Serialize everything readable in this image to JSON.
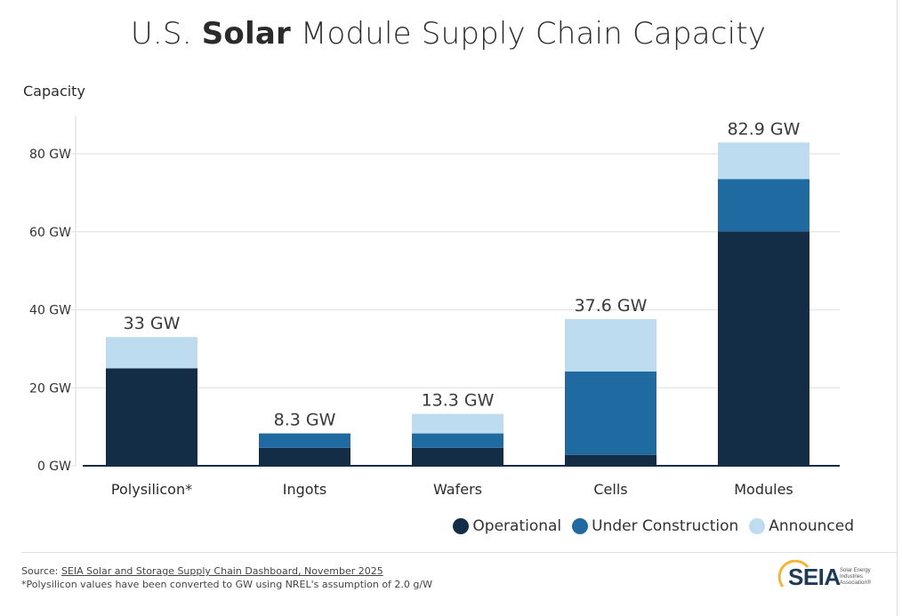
{
  "title": {
    "prefix": "U.S.",
    "bold": "Solar",
    "suffix": "Module Supply Chain Capacity"
  },
  "chart_data": {
    "type": "bar",
    "stacked": true,
    "title": "U.S. Solar Module Supply Chain Capacity",
    "xlabel": "",
    "ylabel": "Capacity",
    "ylim": [
      0,
      90
    ],
    "yticks": [
      0,
      20,
      40,
      60,
      80
    ],
    "ytick_labels": [
      "0 GW",
      "20 GW",
      "40 GW",
      "60 GW",
      "80 GW"
    ],
    "grid": true,
    "legend_position": "bottom-right",
    "categories": [
      "Polysilicon*",
      "Ingots",
      "Wafers",
      "Cells",
      "Modules"
    ],
    "series": [
      {
        "name": "Operational",
        "color": "#132d46",
        "values": [
          25,
          4.6,
          4.6,
          2.8,
          60.1
        ]
      },
      {
        "name": "Under Construction",
        "color": "#1f6aa0",
        "values": [
          0,
          3.7,
          3.7,
          21.4,
          13.4
        ]
      },
      {
        "name": "Announced",
        "color": "#bddcf0",
        "values": [
          8,
          0,
          5,
          13.4,
          9.4
        ]
      }
    ],
    "totals": [
      33,
      8.3,
      13.3,
      37.6,
      82.9
    ],
    "total_labels": [
      "33 GW",
      "8.3 GW",
      "13.3 GW",
      "37.6 GW",
      "82.9 GW"
    ]
  },
  "legend": {
    "items": [
      {
        "label": "Operational",
        "color": "#132d46"
      },
      {
        "label": "Under Construction",
        "color": "#1f6aa0"
      },
      {
        "label": "Announced",
        "color": "#bddcf0"
      }
    ]
  },
  "footer": {
    "source_prefix": "Source: ",
    "source_link": "SEIA Solar and Storage Supply Chain Dashboard, November 2025",
    "note": "*Polysilicon values have been converted to GW using NREL's assumption of 2.0 g/W"
  },
  "logo": {
    "name": "SEIA",
    "sub1": "Solar Energy",
    "sub2": "Industries",
    "sub3": "Association®"
  }
}
